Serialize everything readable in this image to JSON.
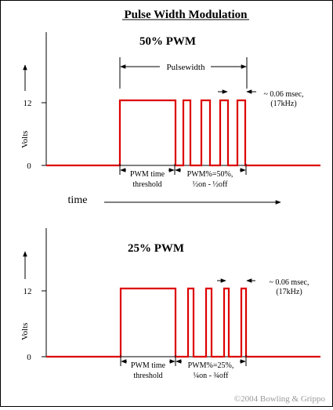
{
  "title": "Pulse Width Modulation",
  "time_label": "time",
  "copyright": "©2004 Bowling & Grippo",
  "colors": {
    "signal": "#dd0000",
    "axis": "#000000",
    "copyright": "#9a9a9a"
  },
  "panels": [
    {
      "heading": "50% PWM",
      "y_axis_label": "Volts",
      "y_ticks": [
        "12",
        "0"
      ],
      "pulsewidth_label": "Pulsewidth",
      "period_label_line1": "~ 0.06 msec,",
      "period_label_line2": "(17kHz)",
      "threshold_line1": "PWM time",
      "threshold_line2": "threshold",
      "duty_line1": "PWM%=50%,",
      "duty_line2": "½on - ½off"
    },
    {
      "heading": "25% PWM",
      "y_axis_label": "Volts",
      "y_ticks": [
        "12",
        "0"
      ],
      "period_label_line1": "~ 0.06 msec,",
      "period_label_line2": "(17kHz)",
      "threshold_line1": "PWM time",
      "threshold_line2": "threshold",
      "duty_line1": "PWM%=25%,",
      "duty_line2": "¼on - ¾off"
    }
  ]
}
